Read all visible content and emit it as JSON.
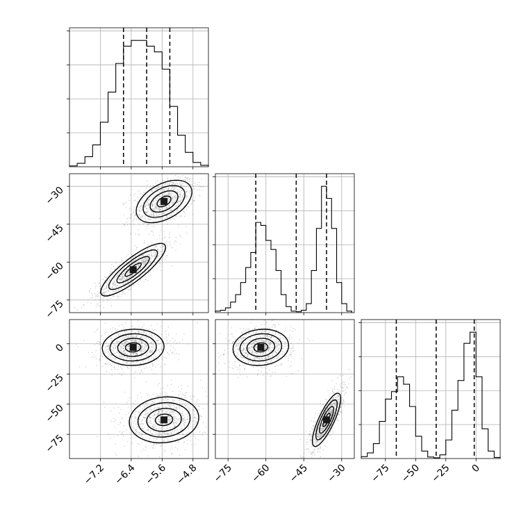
{
  "chart_data": {
    "type": "corner",
    "parameters": [
      "",
      "",
      ""
    ],
    "grid": true,
    "colors": {
      "line": "#000000",
      "grid": "#b0b0b0",
      "points": "#8a8a8a"
    },
    "axes": [
      {
        "range": [
          -8.0,
          -4.4
        ],
        "ticks": [
          -7.2,
          -6.4,
          -5.6,
          -4.8
        ],
        "tick_labels": [
          "−7.2",
          "−6.4",
          "−5.6",
          "−4.8"
        ]
      },
      {
        "range": [
          -80,
          -25
        ],
        "ticks": [
          -75,
          -60,
          -45,
          -30
        ],
        "tick_labels": [
          "−75",
          "−60",
          "−45",
          "−30"
        ]
      },
      {
        "range": [
          -95,
          20
        ],
        "ticks": [
          -75,
          -50,
          -25,
          0
        ],
        "tick_labels": [
          "−75",
          "−50",
          "−25",
          "0"
        ]
      }
    ],
    "quantiles": [
      [
        -6.6,
        -6.0,
        -5.4
      ],
      [
        -64,
        -48,
        -36
      ],
      [
        -66,
        -33,
        -1.5
      ]
    ],
    "histograms": [
      {
        "bin_edges": [
          -8.0,
          -7.8,
          -7.6,
          -7.4,
          -7.2,
          -7.0,
          -6.8,
          -6.6,
          -6.4,
          -6.2,
          -6.0,
          -5.8,
          -5.6,
          -5.4,
          -5.2,
          -5.0,
          -4.8,
          -4.6,
          -4.4
        ],
        "counts": [
          0.3,
          1.2,
          3.5,
          7.6,
          15.5,
          26,
          36,
          42,
          44,
          44,
          42,
          40,
          34,
          21,
          11,
          5,
          1.5,
          0.5
        ]
      },
      {
        "bin_edges": [
          -80,
          -78,
          -76,
          -74,
          -72,
          -70,
          -68,
          -66,
          -64,
          -62,
          -60,
          -58,
          -56,
          -54,
          -52,
          -50,
          -48,
          -46,
          -44,
          -42,
          -40,
          -38,
          -36,
          -34,
          -32,
          -30,
          -28,
          -26
        ],
        "counts": [
          0.5,
          0.8,
          1.6,
          3.5,
          6,
          10,
          15,
          20,
          30,
          29,
          24,
          21,
          14,
          6,
          2,
          0.5,
          0.3,
          0.8,
          3,
          14,
          28,
          42,
          38,
          28,
          10,
          3,
          0.5
        ]
      },
      {
        "bin_edges": [
          -95,
          -90,
          -85,
          -80,
          -75,
          -70,
          -65,
          -60,
          -55,
          -50,
          -45,
          -40,
          -35,
          -30,
          -25,
          -20,
          -15,
          -10,
          -5,
          0,
          5,
          10,
          15,
          20
        ],
        "counts": [
          0.5,
          1.5,
          4,
          10,
          16,
          18,
          22,
          20,
          14,
          6,
          2,
          0.4,
          0.2,
          1,
          5,
          13,
          21,
          31,
          34,
          22,
          8,
          2,
          0.3
        ]
      }
    ],
    "contours": [
      {
        "x_param": 0,
        "y_param": 1,
        "modes": [
          {
            "center": [
              -5.55,
              -36
            ],
            "sx": 0.36,
            "sy": 4.2,
            "rho": 0.45
          },
          {
            "center": [
              -6.35,
              -63
            ],
            "sx": 0.42,
            "sy": 5.2,
            "rho": 0.85
          }
        ]
      },
      {
        "x_param": 0,
        "y_param": 2,
        "modes": [
          {
            "center": [
              -6.35,
              -3
            ],
            "sx": 0.4,
            "sy": 7.5,
            "rho": 0.05
          },
          {
            "center": [
              -5.55,
              -63
            ],
            "sx": 0.45,
            "sy": 9.5,
            "rho": 0.1
          }
        ]
      },
      {
        "x_param": 1,
        "y_param": 2,
        "modes": [
          {
            "center": [
              -62,
              -3
            ],
            "sx": 5.5,
            "sy": 7.5,
            "rho": 0.1
          },
          {
            "center": [
              -36,
              -63
            ],
            "sx": 2.8,
            "sy": 11,
            "rho": 0.8
          }
        ]
      }
    ]
  }
}
